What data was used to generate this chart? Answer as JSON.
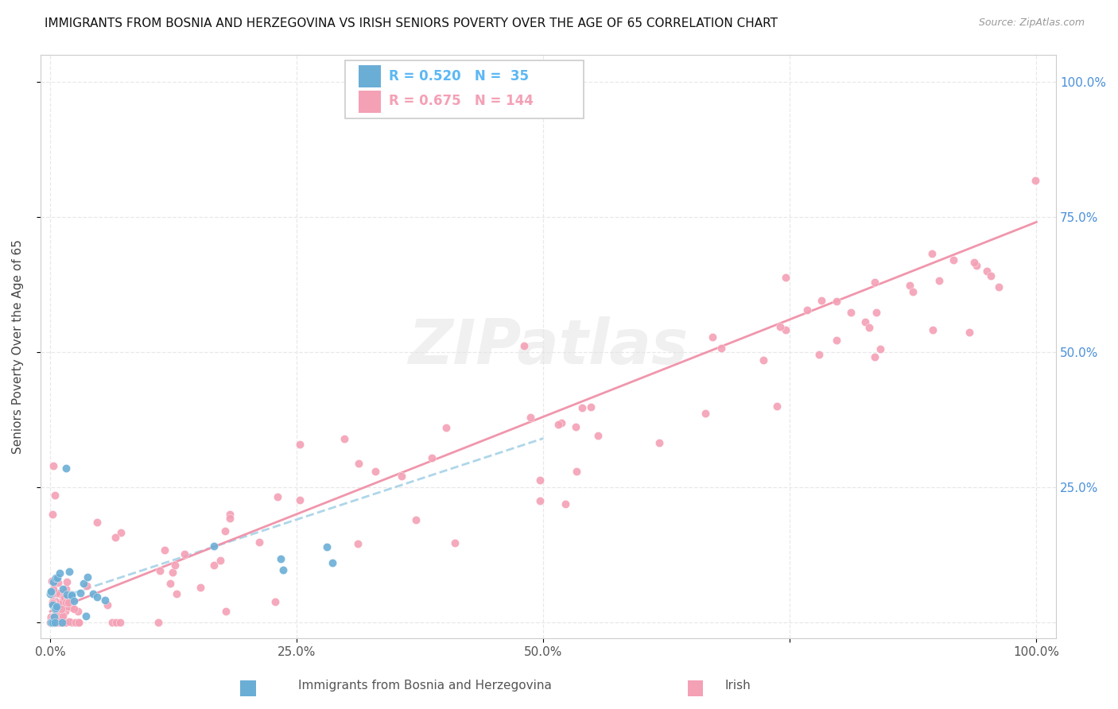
{
  "title": "IMMIGRANTS FROM BOSNIA AND HERZEGOVINA VS IRISH SENIORS POVERTY OVER THE AGE OF 65 CORRELATION CHART",
  "source": "Source: ZipAtlas.com",
  "ylabel": "Seniors Poverty Over the Age of 65",
  "xlabel": "",
  "blue_R": 0.52,
  "blue_N": 35,
  "pink_R": 0.675,
  "pink_N": 144,
  "blue_color": "#6aaed6",
  "pink_color": "#f4a0b5",
  "trendline_blue_color": "#aad4e8",
  "trendline_pink_color": "#f090a8",
  "watermark": "ZIPatlas",
  "x_tick_pos": [
    0.0,
    0.25,
    0.5,
    0.75,
    1.0
  ],
  "x_tick_labels": [
    "0.0%",
    "25.0%",
    "50.0%",
    "",
    "100.0%"
  ],
  "y_tick_pos": [
    0.0,
    0.25,
    0.5,
    0.75,
    1.0
  ],
  "y_tick_labels": [
    "",
    "25.0%",
    "50.0%",
    "75.0%",
    "100.0%"
  ],
  "legend_label_blue": "Immigrants from Bosnia and Herzegovina",
  "legend_label_pink": "Irish",
  "right_tick_color": "#4a90d9",
  "grid_color": "#e8e8e8",
  "grid_style": "--"
}
